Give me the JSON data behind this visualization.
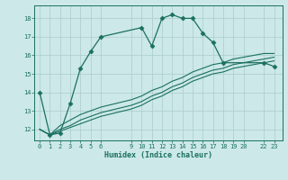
{
  "xlabel": "Humidex (Indice chaleur)",
  "bg_color": "#cce8e8",
  "grid_color": "#aacccc",
  "line_color": "#1a7060",
  "xticks": [
    0,
    1,
    2,
    3,
    4,
    5,
    6,
    9,
    10,
    11,
    12,
    13,
    14,
    15,
    16,
    17,
    18,
    19,
    20,
    22,
    23
  ],
  "yticks": [
    12,
    13,
    14,
    15,
    16,
    17,
    18
  ],
  "ylim": [
    11.4,
    18.7
  ],
  "xlim": [
    -0.5,
    23.8
  ],
  "line1_x": [
    0,
    1,
    2,
    3,
    4,
    5,
    6,
    10,
    11,
    12,
    13,
    14,
    15,
    16,
    17,
    18,
    22,
    23
  ],
  "line1_y": [
    14.0,
    11.7,
    11.8,
    13.4,
    15.3,
    16.2,
    17.0,
    17.5,
    16.5,
    18.0,
    18.2,
    18.0,
    18.0,
    17.2,
    16.7,
    15.6,
    15.6,
    15.4
  ],
  "line2_x": [
    0,
    1,
    2,
    3,
    4,
    5,
    6,
    9,
    10,
    11,
    12,
    13,
    14,
    15,
    16,
    17,
    18,
    19,
    20,
    22,
    23
  ],
  "line2_y": [
    12.0,
    11.7,
    12.2,
    12.5,
    12.8,
    13.0,
    13.2,
    13.6,
    13.8,
    14.1,
    14.3,
    14.6,
    14.8,
    15.1,
    15.3,
    15.5,
    15.6,
    15.8,
    15.9,
    16.1,
    16.1
  ],
  "line3_x": [
    0,
    1,
    2,
    3,
    4,
    5,
    6,
    9,
    10,
    11,
    12,
    13,
    14,
    15,
    16,
    17,
    18,
    19,
    20,
    22,
    23
  ],
  "line3_y": [
    12.0,
    11.7,
    12.0,
    12.2,
    12.5,
    12.7,
    12.9,
    13.3,
    13.5,
    13.8,
    14.0,
    14.3,
    14.5,
    14.8,
    15.0,
    15.2,
    15.3,
    15.5,
    15.6,
    15.8,
    15.9
  ],
  "line4_x": [
    0,
    1,
    2,
    3,
    4,
    5,
    6,
    9,
    10,
    11,
    12,
    13,
    14,
    15,
    16,
    17,
    18,
    19,
    20,
    22,
    23
  ],
  "line4_y": [
    12.0,
    11.7,
    11.9,
    12.1,
    12.3,
    12.5,
    12.7,
    13.1,
    13.3,
    13.6,
    13.8,
    14.1,
    14.3,
    14.6,
    14.8,
    15.0,
    15.1,
    15.3,
    15.4,
    15.6,
    15.7
  ]
}
